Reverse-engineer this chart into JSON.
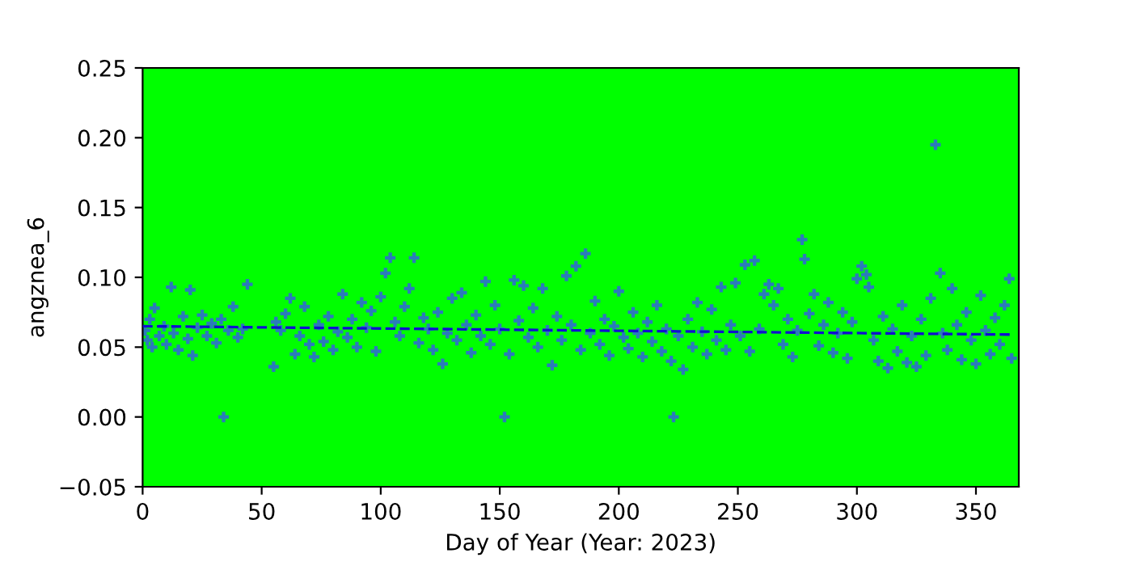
{
  "chart_data": {
    "type": "scatter",
    "xlabel": "Day of Year (Year: 2023)",
    "ylabel": "angznea_6",
    "xlim": [
      0,
      368
    ],
    "ylim": [
      -0.05,
      0.25
    ],
    "xticks": [
      0,
      50,
      100,
      150,
      200,
      250,
      300,
      350
    ],
    "yticks": [
      {
        "value": -0.05,
        "label": "−0.05"
      },
      {
        "value": 0,
        "label": "0.00"
      },
      {
        "value": 0.05,
        "label": "0.05"
      },
      {
        "value": 0.1,
        "label": "0.10"
      },
      {
        "value": 0.15,
        "label": "0.15"
      },
      {
        "value": 0.2,
        "label": "0.20"
      },
      {
        "value": 0.25,
        "label": "0.25"
      }
    ],
    "grid": false,
    "series": [
      {
        "color": "#2b7bba",
        "marker": "cross",
        "x": [
          1,
          2,
          3,
          4,
          5,
          7,
          9,
          10,
          12,
          13,
          15,
          17,
          19,
          20,
          21,
          23,
          25,
          27,
          29,
          31,
          33,
          34,
          36,
          38,
          40,
          42,
          44,
          55,
          56,
          58,
          60,
          62,
          64,
          66,
          68,
          70,
          72,
          74,
          76,
          78,
          80,
          82,
          84,
          86,
          88,
          90,
          92,
          94,
          96,
          98,
          100,
          102,
          104,
          106,
          108,
          110,
          112,
          114,
          116,
          118,
          120,
          122,
          124,
          126,
          128,
          130,
          132,
          134,
          136,
          138,
          140,
          142,
          144,
          146,
          148,
          150,
          152,
          154,
          156,
          158,
          160,
          162,
          164,
          166,
          168,
          170,
          172,
          174,
          176,
          178,
          180,
          182,
          184,
          186,
          188,
          190,
          192,
          194,
          196,
          198,
          200,
          202,
          204,
          206,
          208,
          210,
          212,
          214,
          216,
          218,
          220,
          222,
          223,
          225,
          227,
          229,
          231,
          233,
          235,
          237,
          239,
          241,
          243,
          245,
          247,
          249,
          251,
          253,
          255,
          257,
          259,
          261,
          263,
          265,
          267,
          269,
          271,
          273,
          275,
          277,
          278,
          280,
          282,
          284,
          286,
          288,
          290,
          292,
          294,
          296,
          298,
          300,
          302,
          304,
          305,
          307,
          309,
          311,
          313,
          315,
          317,
          319,
          321,
          323,
          325,
          327,
          329,
          331,
          333,
          335,
          336,
          338,
          340,
          342,
          344,
          346,
          348,
          350,
          352,
          354,
          356,
          358,
          360,
          362,
          364,
          365
        ],
        "values": [
          0.062,
          0.055,
          0.07,
          0.05,
          0.078,
          0.058,
          0.065,
          0.052,
          0.093,
          0.06,
          0.048,
          0.072,
          0.056,
          0.091,
          0.044,
          0.064,
          0.073,
          0.058,
          0.067,
          0.053,
          0.07,
          0.0,
          0.062,
          0.079,
          0.057,
          0.063,
          0.095,
          0.036,
          0.068,
          0.062,
          0.074,
          0.085,
          0.045,
          0.058,
          0.079,
          0.052,
          0.043,
          0.066,
          0.054,
          0.072,
          0.048,
          0.061,
          0.088,
          0.057,
          0.07,
          0.05,
          0.082,
          0.064,
          0.076,
          0.047,
          0.086,
          0.103,
          0.114,
          0.068,
          0.058,
          0.079,
          0.092,
          0.114,
          0.053,
          0.071,
          0.063,
          0.048,
          0.075,
          0.038,
          0.06,
          0.085,
          0.055,
          0.089,
          0.066,
          0.046,
          0.073,
          0.058,
          0.097,
          0.052,
          0.08,
          0.063,
          0.0,
          0.045,
          0.098,
          0.069,
          0.094,
          0.057,
          0.078,
          0.05,
          0.092,
          0.062,
          0.037,
          0.072,
          0.055,
          0.101,
          0.066,
          0.108,
          0.048,
          0.117,
          0.06,
          0.083,
          0.052,
          0.07,
          0.044,
          0.065,
          0.09,
          0.057,
          0.049,
          0.075,
          0.06,
          0.043,
          0.068,
          0.054,
          0.08,
          0.047,
          0.063,
          0.04,
          0.0,
          0.058,
          0.034,
          0.07,
          0.05,
          0.082,
          0.061,
          0.045,
          0.077,
          0.055,
          0.093,
          0.048,
          0.066,
          0.096,
          0.058,
          0.109,
          0.047,
          0.112,
          0.063,
          0.088,
          0.095,
          0.08,
          0.092,
          0.052,
          0.07,
          0.043,
          0.062,
          0.127,
          0.113,
          0.074,
          0.088,
          0.051,
          0.066,
          0.082,
          0.046,
          0.06,
          0.075,
          0.042,
          0.068,
          0.099,
          0.108,
          0.102,
          0.093,
          0.055,
          0.04,
          0.072,
          0.035,
          0.063,
          0.047,
          0.08,
          0.039,
          0.058,
          0.036,
          0.07,
          0.044,
          0.085,
          0.195,
          0.103,
          0.06,
          0.048,
          0.092,
          0.066,
          0.041,
          0.075,
          0.055,
          0.038,
          0.087,
          0.062,
          0.045,
          0.071,
          0.052,
          0.08,
          0.099,
          0.042
        ]
      },
      {
        "type": "line",
        "color": "#1010d0",
        "marker": "none",
        "line_style": "dashed",
        "x": [
          0,
          365
        ],
        "values": [
          0.065,
          0.059
        ]
      }
    ]
  }
}
